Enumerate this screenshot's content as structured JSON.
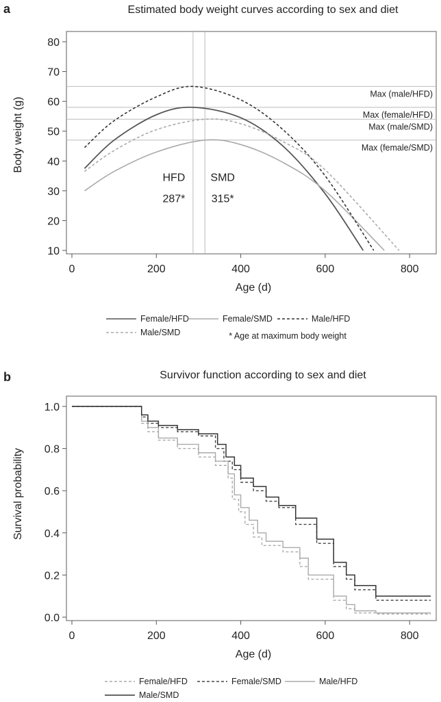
{
  "chart_data": [
    {
      "panel": "a",
      "type": "line",
      "title": "Estimated body weight curves according to sex and diet",
      "xlabel": "Age (d)",
      "ylabel": "Body weight (g)",
      "xlim": [
        0,
        850
      ],
      "ylim": [
        10,
        80
      ],
      "xticks": [
        0,
        200,
        400,
        600,
        800
      ],
      "yticks": [
        10,
        20,
        30,
        40,
        50,
        60,
        70,
        80
      ],
      "grid": false,
      "legend_position": "bottom",
      "series": [
        {
          "name": "Female/HFD",
          "color": "#555555",
          "dash": "solid",
          "width": 1.8,
          "x": [
            30,
            100,
            200,
            287,
            400,
            500,
            600,
            690
          ],
          "y": [
            37.5,
            47.0,
            55.5,
            58.0,
            54.5,
            45.0,
            29.0,
            10.0
          ]
        },
        {
          "name": "Female/SMD",
          "color": "#aaaaaa",
          "dash": "solid",
          "width": 1.6,
          "x": [
            30,
            100,
            200,
            315,
            400,
            500,
            600,
            740
          ],
          "y": [
            30.0,
            36.5,
            43.0,
            47.0,
            45.5,
            39.5,
            30.0,
            10.0
          ]
        },
        {
          "name": "Male/HFD",
          "color": "#333333",
          "dash": "4,3",
          "width": 1.6,
          "x": [
            30,
            100,
            200,
            287,
            400,
            500,
            600,
            715
          ],
          "y": [
            44.5,
            53.5,
            61.5,
            65.0,
            60.5,
            50.5,
            35.0,
            10.0
          ]
        },
        {
          "name": "Male/SMD",
          "color": "#aaaaaa",
          "dash": "4,3",
          "width": 1.6,
          "x": [
            30,
            100,
            200,
            315,
            400,
            500,
            600,
            775
          ],
          "y": [
            36.5,
            43.5,
            50.5,
            54.0,
            52.5,
            46.5,
            37.0,
            10.0
          ]
        }
      ],
      "hlines": [
        {
          "y": 65,
          "label": "Max (male/HFD)"
        },
        {
          "y": 58,
          "label": "Max (female/HFD)"
        },
        {
          "y": 54,
          "label": "Max (male/SMD)"
        },
        {
          "y": 47,
          "label": "Max (female/SMD)"
        }
      ],
      "vlines": [
        {
          "x": 287,
          "label": "HFD",
          "value_label": "287*"
        },
        {
          "x": 315,
          "label": "SMD",
          "value_label": "315*"
        }
      ],
      "legend_note": "* Age at maximum body weight"
    },
    {
      "panel": "b",
      "type": "line",
      "subtype": "step",
      "title": "Survivor function according to sex and diet",
      "xlabel": "Age (d)",
      "ylabel": "Survival probability",
      "xlim": [
        0,
        850
      ],
      "ylim": [
        0.0,
        1.0
      ],
      "xticks": [
        0,
        200,
        400,
        600,
        800
      ],
      "yticks": [
        0.0,
        0.2,
        0.4,
        0.6,
        0.8,
        1.0
      ],
      "ytick_labels": [
        "0.0",
        "0.2",
        "0.4",
        "0.6",
        "0.8",
        "1.0"
      ],
      "grid": false,
      "legend_position": "bottom",
      "series": [
        {
          "name": "Female/HFD",
          "color": "#aaaaaa",
          "dash": "4,3",
          "width": 1.4,
          "x": [
            0,
            165,
            180,
            205,
            250,
            300,
            340,
            370,
            380,
            395,
            410,
            430,
            450,
            500,
            540,
            560,
            620,
            650,
            670,
            720,
            850
          ],
          "y": [
            1.0,
            0.92,
            0.88,
            0.84,
            0.8,
            0.76,
            0.72,
            0.66,
            0.56,
            0.5,
            0.44,
            0.38,
            0.34,
            0.31,
            0.24,
            0.18,
            0.08,
            0.04,
            0.02,
            0.015,
            0.015
          ]
        },
        {
          "name": "Female/SMD",
          "color": "#444444",
          "dash": "4,3",
          "width": 1.4,
          "x": [
            0,
            165,
            180,
            205,
            250,
            300,
            340,
            360,
            380,
            400,
            430,
            460,
            490,
            530,
            580,
            620,
            650,
            670,
            720,
            850
          ],
          "y": [
            1.0,
            0.95,
            0.92,
            0.9,
            0.88,
            0.86,
            0.8,
            0.74,
            0.7,
            0.64,
            0.6,
            0.55,
            0.52,
            0.44,
            0.35,
            0.24,
            0.18,
            0.13,
            0.08,
            0.08
          ]
        },
        {
          "name": "Male/HFD",
          "color": "#aaaaaa",
          "dash": "solid",
          "width": 1.4,
          "x": [
            0,
            165,
            180,
            205,
            250,
            300,
            340,
            370,
            385,
            400,
            420,
            440,
            460,
            500,
            540,
            560,
            620,
            650,
            670,
            720,
            850
          ],
          "y": [
            1.0,
            0.93,
            0.9,
            0.85,
            0.82,
            0.78,
            0.74,
            0.68,
            0.58,
            0.52,
            0.46,
            0.4,
            0.36,
            0.33,
            0.28,
            0.2,
            0.1,
            0.06,
            0.03,
            0.02,
            0.02
          ]
        },
        {
          "name": "Male/SMD",
          "color": "#333333",
          "dash": "solid",
          "width": 1.5,
          "x": [
            0,
            165,
            180,
            205,
            250,
            300,
            345,
            365,
            385,
            400,
            430,
            460,
            490,
            530,
            580,
            620,
            650,
            670,
            720,
            850
          ],
          "y": [
            1.0,
            0.96,
            0.93,
            0.91,
            0.89,
            0.87,
            0.82,
            0.76,
            0.72,
            0.66,
            0.62,
            0.57,
            0.53,
            0.47,
            0.37,
            0.26,
            0.2,
            0.15,
            0.1,
            0.1
          ]
        }
      ]
    }
  ],
  "panels": [
    {
      "letter": "a",
      "legend": [
        {
          "name": "Female/HFD",
          "color": "#555555",
          "dash": "solid"
        },
        {
          "name": "Female/SMD",
          "color": "#aaaaaa",
          "dash": "solid"
        },
        {
          "name": "Male/HFD",
          "color": "#333333",
          "dash": "4,3"
        },
        {
          "name": "Male/SMD",
          "color": "#aaaaaa",
          "dash": "4,3"
        }
      ]
    },
    {
      "letter": "b",
      "legend": [
        {
          "name": "Female/HFD",
          "color": "#aaaaaa",
          "dash": "4,3"
        },
        {
          "name": "Female/SMD",
          "color": "#444444",
          "dash": "4,3"
        },
        {
          "name": "Male/HFD",
          "color": "#aaaaaa",
          "dash": "solid"
        },
        {
          "name": "Male/SMD",
          "color": "#333333",
          "dash": "solid"
        }
      ]
    }
  ]
}
